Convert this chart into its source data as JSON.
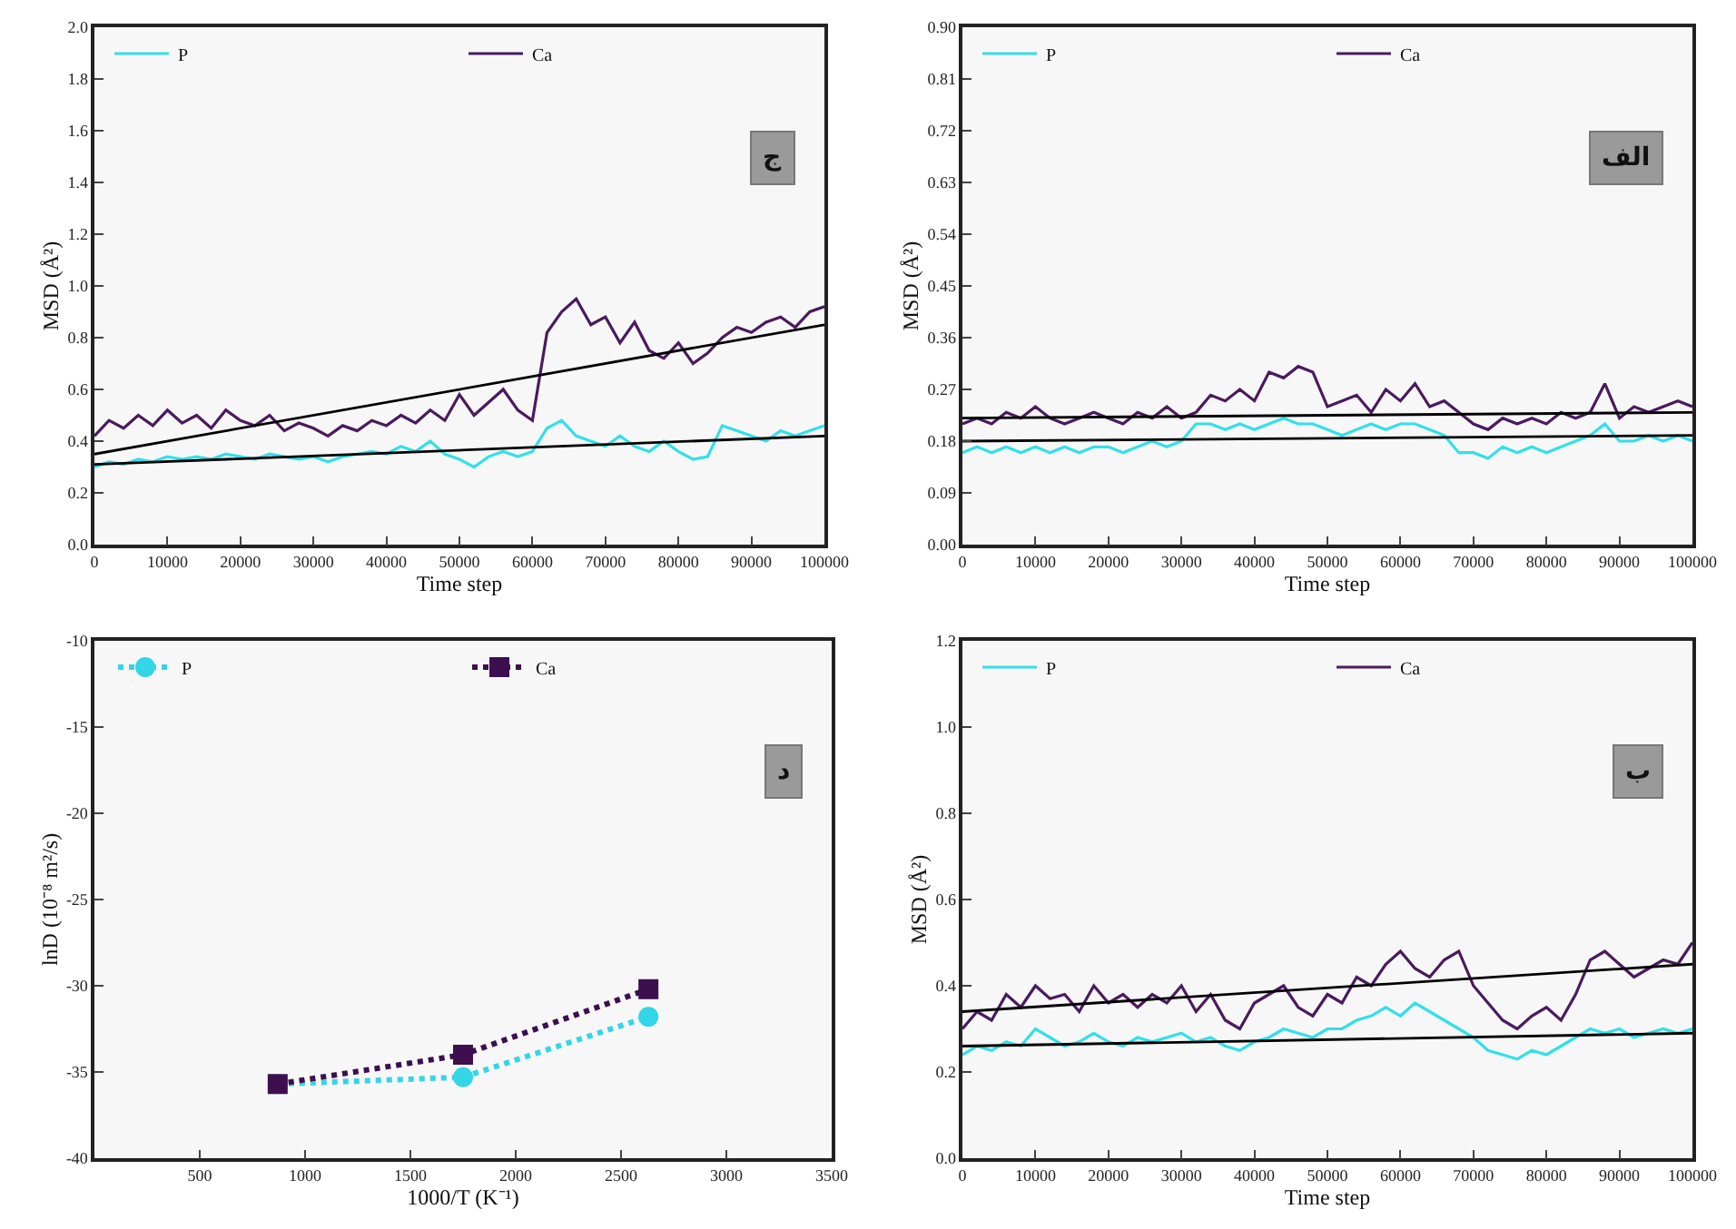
{
  "chart_data": [
    {
      "type": "line",
      "xlabel": "Time step",
      "ylabel": "MSD (Å²)",
      "annotations": [
        "ج"
      ],
      "legend": "top",
      "grid": false,
      "marker": "none",
      "x": [
        0,
        2000,
        4000,
        6000,
        8000,
        10000,
        12000,
        14000,
        16000,
        18000,
        20000,
        22000,
        24000,
        26000,
        28000,
        30000,
        32000,
        34000,
        36000,
        38000,
        40000,
        42000,
        44000,
        46000,
        48000,
        50000,
        52000,
        54000,
        56000,
        58000,
        60000,
        62000,
        64000,
        66000,
        68000,
        70000,
        72000,
        74000,
        76000,
        78000,
        80000,
        82000,
        84000,
        86000,
        88000,
        90000,
        92000,
        94000,
        96000,
        98000,
        100000
      ],
      "xlim": [
        0,
        100000
      ],
      "xticks": [
        0,
        10000,
        20000,
        30000,
        40000,
        50000,
        60000,
        70000,
        80000,
        90000,
        100000
      ],
      "ylim": [
        0,
        2
      ],
      "yticks": [
        {
          "value": 0,
          "label": "0.0"
        },
        0.2,
        0.4,
        0.6,
        0.8,
        {
          "value": 1,
          "label": "1.0"
        },
        1.2,
        1.4,
        1.6,
        1.8,
        {
          "value": 2,
          "label": "2.0"
        }
      ],
      "series": [
        {
          "name": "P",
          "color": "#33e0e8",
          "values": [
            0.3,
            0.32,
            0.31,
            0.33,
            0.32,
            0.34,
            0.33,
            0.34,
            0.33,
            0.35,
            0.34,
            0.33,
            0.35,
            0.34,
            0.33,
            0.34,
            0.32,
            0.34,
            0.35,
            0.36,
            0.35,
            0.38,
            0.36,
            0.4,
            0.35,
            0.33,
            0.3,
            0.34,
            0.36,
            0.34,
            0.36,
            0.45,
            0.48,
            0.42,
            0.4,
            0.38,
            0.42,
            0.38,
            0.36,
            0.4,
            0.36,
            0.33,
            0.34,
            0.46,
            0.44,
            0.42,
            0.4,
            0.44,
            0.42,
            0.44,
            0.46
          ]
        },
        {
          "name": "Ca",
          "color": "#4b1a5e",
          "values": [
            0.42,
            0.48,
            0.45,
            0.5,
            0.46,
            0.52,
            0.47,
            0.5,
            0.45,
            0.52,
            0.48,
            0.46,
            0.5,
            0.44,
            0.47,
            0.45,
            0.42,
            0.46,
            0.44,
            0.48,
            0.46,
            0.5,
            0.47,
            0.52,
            0.48,
            0.58,
            0.5,
            0.55,
            0.6,
            0.52,
            0.48,
            0.82,
            0.9,
            0.95,
            0.85,
            0.88,
            0.78,
            0.86,
            0.75,
            0.72,
            0.78,
            0.7,
            0.74,
            0.8,
            0.84,
            0.82,
            0.86,
            0.88,
            0.84,
            0.9,
            0.92
          ]
        },
        {
          "type": "line",
          "color": "#000000",
          "x": [
            0,
            100000
          ],
          "values": [
            0.31,
            0.42
          ]
        },
        {
          "type": "line",
          "color": "#000000",
          "x": [
            0,
            100000
          ],
          "values": [
            0.35,
            0.85
          ]
        }
      ]
    },
    {
      "type": "line",
      "xlabel": "Time step",
      "ylabel": "MSD (Å²)",
      "annotations": [
        "الف"
      ],
      "legend": "top",
      "grid": false,
      "marker": "none",
      "x": [
        0,
        2000,
        4000,
        6000,
        8000,
        10000,
        12000,
        14000,
        16000,
        18000,
        20000,
        22000,
        24000,
        26000,
        28000,
        30000,
        32000,
        34000,
        36000,
        38000,
        40000,
        42000,
        44000,
        46000,
        48000,
        50000,
        52000,
        54000,
        56000,
        58000,
        60000,
        62000,
        64000,
        66000,
        68000,
        70000,
        72000,
        74000,
        76000,
        78000,
        80000,
        82000,
        84000,
        86000,
        88000,
        90000,
        92000,
        94000,
        96000,
        98000,
        100000
      ],
      "xlim": [
        0,
        100000
      ],
      "xticks": [
        0,
        10000,
        20000,
        30000,
        40000,
        50000,
        60000,
        70000,
        80000,
        90000,
        100000
      ],
      "ylim": [
        0,
        0.9
      ],
      "yticks": [
        {
          "value": 0,
          "label": "0.00"
        },
        0.09,
        0.18,
        0.27,
        0.36,
        0.45,
        0.54,
        0.63,
        0.72,
        0.81,
        {
          "value": 0.9,
          "label": "0.90"
        }
      ],
      "series": [
        {
          "name": "P",
          "color": "#33e0e8",
          "values": [
            0.16,
            0.17,
            0.16,
            0.17,
            0.16,
            0.17,
            0.16,
            0.17,
            0.16,
            0.17,
            0.17,
            0.16,
            0.17,
            0.18,
            0.17,
            0.18,
            0.21,
            0.21,
            0.2,
            0.21,
            0.2,
            0.21,
            0.22,
            0.21,
            0.21,
            0.2,
            0.19,
            0.2,
            0.21,
            0.2,
            0.21,
            0.21,
            0.2,
            0.19,
            0.16,
            0.16,
            0.15,
            0.17,
            0.16,
            0.17,
            0.16,
            0.17,
            0.18,
            0.19,
            0.21,
            0.18,
            0.18,
            0.19,
            0.18,
            0.19,
            0.18
          ]
        },
        {
          "name": "Ca",
          "color": "#4b1a5e",
          "values": [
            0.21,
            0.22,
            0.21,
            0.23,
            0.22,
            0.24,
            0.22,
            0.21,
            0.22,
            0.23,
            0.22,
            0.21,
            0.23,
            0.22,
            0.24,
            0.22,
            0.23,
            0.26,
            0.25,
            0.27,
            0.25,
            0.3,
            0.29,
            0.31,
            0.3,
            0.24,
            0.25,
            0.26,
            0.23,
            0.27,
            0.25,
            0.28,
            0.24,
            0.25,
            0.23,
            0.21,
            0.2,
            0.22,
            0.21,
            0.22,
            0.21,
            0.23,
            0.22,
            0.23,
            0.28,
            0.22,
            0.24,
            0.23,
            0.24,
            0.25,
            0.24
          ]
        },
        {
          "type": "line",
          "color": "#000000",
          "x": [
            0,
            100000
          ],
          "values": [
            0.18,
            0.19
          ]
        },
        {
          "type": "line",
          "color": "#000000",
          "x": [
            0,
            100000
          ],
          "values": [
            0.22,
            0.23
          ]
        }
      ]
    },
    {
      "type": "line",
      "xlabel": "1000/T (K⁻¹)",
      "ylabel": "lnD (10⁻⁸ m²/s)",
      "annotations": [
        "د"
      ],
      "legend": "top",
      "grid": false,
      "xlim": [
        0,
        3500
      ],
      "xticks": [
        500,
        1000,
        1500,
        2000,
        2500,
        3000,
        3500
      ],
      "ylim": [
        -40,
        -10
      ],
      "yticks": [
        -10,
        -15,
        -20,
        -25,
        -30,
        -35,
        -40
      ],
      "series": [
        {
          "name": "P",
          "color": "#33d6e6",
          "marker": "circle",
          "line_style": "dotted",
          "x": [
            870,
            1750,
            2630
          ],
          "values": [
            -35.7,
            -35.3,
            -31.8
          ]
        },
        {
          "name": "Ca",
          "color": "#3d0f4f",
          "marker": "square",
          "line_style": "dotted",
          "x": [
            870,
            1750,
            2630
          ],
          "values": [
            -35.7,
            -34,
            -30.2
          ]
        }
      ]
    },
    {
      "type": "line",
      "xlabel": "Time step",
      "ylabel": "MSD (Å²)",
      "annotations": [
        "ب"
      ],
      "legend": "top",
      "grid": false,
      "marker": "none",
      "x": [
        0,
        2000,
        4000,
        6000,
        8000,
        10000,
        12000,
        14000,
        16000,
        18000,
        20000,
        22000,
        24000,
        26000,
        28000,
        30000,
        32000,
        34000,
        36000,
        38000,
        40000,
        42000,
        44000,
        46000,
        48000,
        50000,
        52000,
        54000,
        56000,
        58000,
        60000,
        62000,
        64000,
        66000,
        68000,
        70000,
        72000,
        74000,
        76000,
        78000,
        80000,
        82000,
        84000,
        86000,
        88000,
        90000,
        92000,
        94000,
        96000,
        98000,
        100000
      ],
      "xlim": [
        0,
        100000
      ],
      "xticks": [
        0,
        10000,
        20000,
        30000,
        40000,
        50000,
        60000,
        70000,
        80000,
        90000,
        100000
      ],
      "ylim": [
        0,
        1.2
      ],
      "yticks": [
        {
          "value": 0,
          "label": "0.0"
        },
        0.2,
        0.4,
        0.6,
        0.8,
        {
          "value": 1,
          "label": "1.0"
        },
        1.2
      ],
      "series": [
        {
          "name": "P",
          "color": "#33e0e8",
          "values": [
            0.24,
            0.26,
            0.25,
            0.27,
            0.26,
            0.3,
            0.28,
            0.26,
            0.27,
            0.29,
            0.27,
            0.26,
            0.28,
            0.27,
            0.28,
            0.29,
            0.27,
            0.28,
            0.26,
            0.25,
            0.27,
            0.28,
            0.3,
            0.29,
            0.28,
            0.3,
            0.3,
            0.32,
            0.33,
            0.35,
            0.33,
            0.36,
            0.34,
            0.32,
            0.3,
            0.28,
            0.25,
            0.24,
            0.23,
            0.25,
            0.24,
            0.26,
            0.28,
            0.3,
            0.29,
            0.3,
            0.28,
            0.29,
            0.3,
            0.29,
            0.3
          ]
        },
        {
          "name": "Ca",
          "color": "#4b1a5e",
          "values": [
            0.3,
            0.34,
            0.32,
            0.38,
            0.35,
            0.4,
            0.37,
            0.38,
            0.34,
            0.4,
            0.36,
            0.38,
            0.35,
            0.38,
            0.36,
            0.4,
            0.34,
            0.38,
            0.32,
            0.3,
            0.36,
            0.38,
            0.4,
            0.35,
            0.33,
            0.38,
            0.36,
            0.42,
            0.4,
            0.45,
            0.48,
            0.44,
            0.42,
            0.46,
            0.48,
            0.4,
            0.36,
            0.32,
            0.3,
            0.33,
            0.35,
            0.32,
            0.38,
            0.46,
            0.48,
            0.45,
            0.42,
            0.44,
            0.46,
            0.45,
            0.5
          ]
        },
        {
          "type": "line",
          "color": "#000000",
          "x": [
            0,
            100000
          ],
          "values": [
            0.26,
            0.29
          ]
        },
        {
          "type": "line",
          "color": "#000000",
          "x": [
            0,
            100000
          ],
          "values": [
            0.34,
            0.45
          ]
        }
      ]
    }
  ]
}
